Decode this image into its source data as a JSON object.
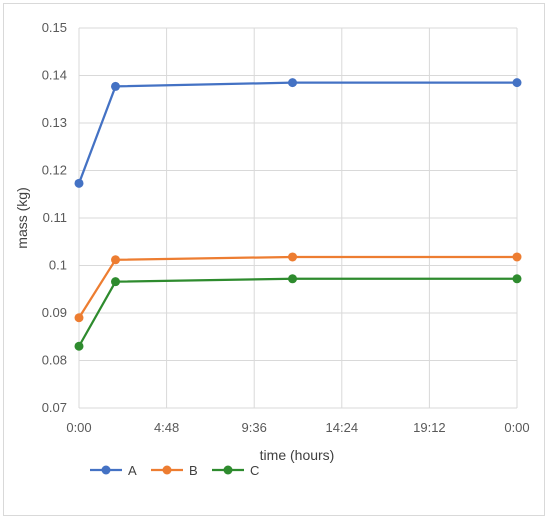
{
  "chart_data": {
    "type": "line",
    "title": "",
    "xlabel": "time (hours)",
    "ylabel": "mass (kg)",
    "xlim_hours": [
      0,
      24
    ],
    "ylim": [
      0.07,
      0.15
    ],
    "y_ticks": [
      "0.07",
      "0.08",
      "0.09",
      "0.1",
      "0.11",
      "0.12",
      "0.13",
      "0.14",
      "0.15"
    ],
    "x_tick_labels": [
      "0:00",
      "4:48",
      "9:36",
      "14:24",
      "19:12",
      "0:00"
    ],
    "grid": "vertical and horizontal",
    "legend_position": "bottom-left",
    "x_hours": [
      0,
      2,
      11.7,
      24
    ],
    "series": [
      {
        "name": "A",
        "color": "#4472c4",
        "values": [
          0.1173,
          0.1377,
          0.1385,
          0.1385
        ]
      },
      {
        "name": "B",
        "color": "#ed7d31",
        "values": [
          0.089,
          0.1012,
          0.1018,
          0.1018
        ]
      },
      {
        "name": "C",
        "color": "#2e8b2e",
        "values": [
          0.083,
          0.0966,
          0.0972,
          0.0972
        ]
      }
    ]
  }
}
